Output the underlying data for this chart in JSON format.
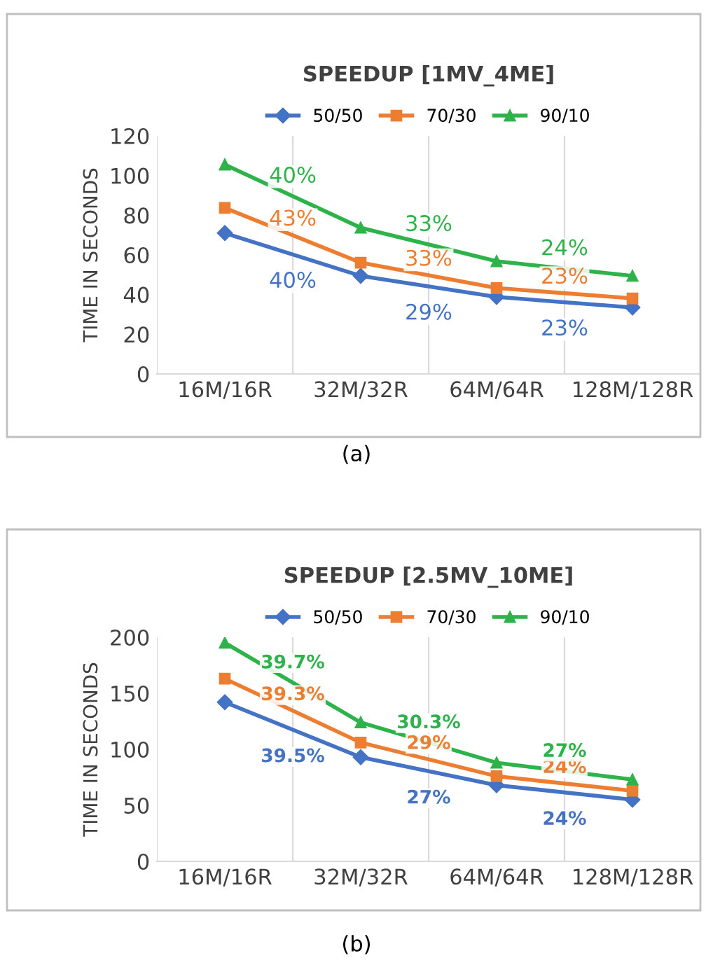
{
  "chart_data": [
    {
      "type": "line",
      "title": "SPEEDUP [1MV_4ME]",
      "ylabel": "TIME IN SECONDS",
      "categories": [
        "16M/16R",
        "32M/32R",
        "64M/64R",
        "128M/128R"
      ],
      "series": [
        {
          "name": "50/50",
          "color": "#4472c4",
          "marker": "diamond",
          "values": [
            71,
            49.4,
            38.8,
            33.5
          ]
        },
        {
          "name": "70/30",
          "color": "#ed7d31",
          "marker": "square",
          "values": [
            83.7,
            56.1,
            43.3,
            38.1
          ]
        },
        {
          "name": "90/10",
          "color": "#2db34a",
          "marker": "triangle",
          "values": [
            105.5,
            73.7,
            56.8,
            49.4
          ]
        }
      ],
      "ylim": [
        0,
        120
      ],
      "yticks": [
        0,
        20,
        40,
        60,
        80,
        100,
        120
      ],
      "grid": "x",
      "legend": "top",
      "annotations": [
        "40%",
        "29%",
        "23%",
        "43%",
        "33%",
        "23%",
        "40%",
        "33%",
        "24%",
        "(a)"
      ]
    },
    {
      "type": "line",
      "title": "SPEEDUP [2.5MV_10ME]",
      "ylabel": "TIME IN SECONDS",
      "categories": [
        "16M/16R",
        "32M/32R",
        "64M/64R",
        "128M/128R"
      ],
      "series": [
        {
          "name": "50/50",
          "color": "#4472c4",
          "marker": "diamond",
          "values": [
            142,
            93,
            68,
            55
          ]
        },
        {
          "name": "70/30",
          "color": "#ed7d31",
          "marker": "square",
          "values": [
            163,
            106,
            76,
            63
          ]
        },
        {
          "name": "90/10",
          "color": "#2db34a",
          "marker": "triangle",
          "values": [
            195,
            124,
            88,
            73
          ]
        }
      ],
      "ylim": [
        0,
        200
      ],
      "yticks": [
        0,
        50,
        100,
        150,
        200
      ],
      "grid": "x",
      "legend": "top",
      "annotations": [
        "39.5%",
        "27%",
        "24%",
        "39.3%",
        "29%",
        "24%",
        "39.7%",
        "30.3%",
        "27%",
        "(b)"
      ]
    }
  ]
}
